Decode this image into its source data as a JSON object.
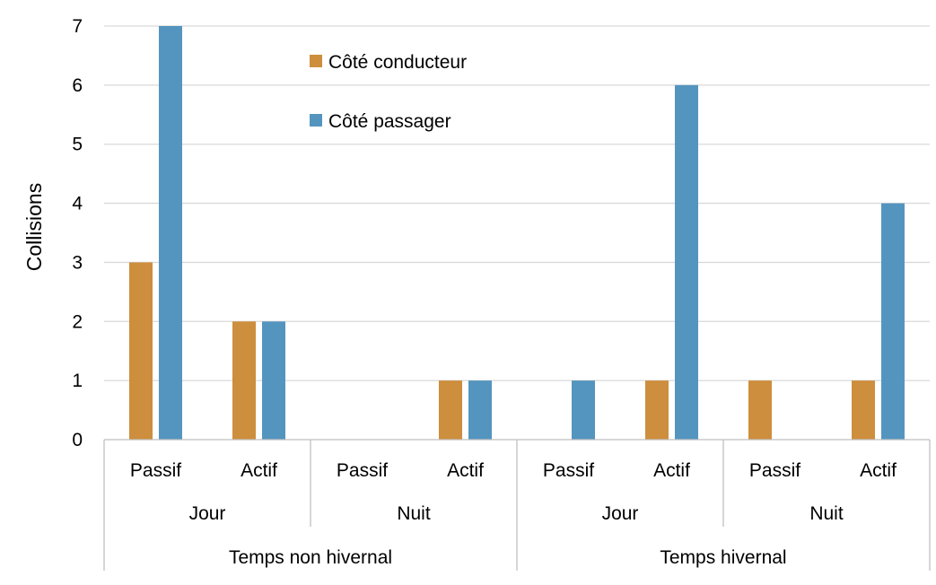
{
  "chart_data": {
    "type": "bar",
    "title": "",
    "xlabel": "",
    "ylabel": "Collisions",
    "ylim": [
      0,
      7
    ],
    "yticks": [
      "0",
      "1",
      "2",
      "3",
      "4",
      "5",
      "6",
      "7"
    ],
    "grid": true,
    "legend_position": "top-left",
    "categories": [
      "Passif",
      "Actif",
      "Passif",
      "Actif",
      "Passif",
      "Actif",
      "Passif",
      "Actif"
    ],
    "level2": [
      "Jour",
      "Nuit",
      "Jour",
      "Nuit"
    ],
    "level3": [
      "Temps non hivernal",
      "Temps hivernal"
    ],
    "series": [
      {
        "name": "Côté conducteur",
        "color": "#CD8E3D",
        "values": [
          3,
          2,
          0,
          1,
          0,
          1,
          1,
          1
        ]
      },
      {
        "name": "Côté passager",
        "color": "#5495BF",
        "values": [
          7,
          2,
          0,
          1,
          1,
          6,
          0,
          4
        ]
      }
    ]
  }
}
